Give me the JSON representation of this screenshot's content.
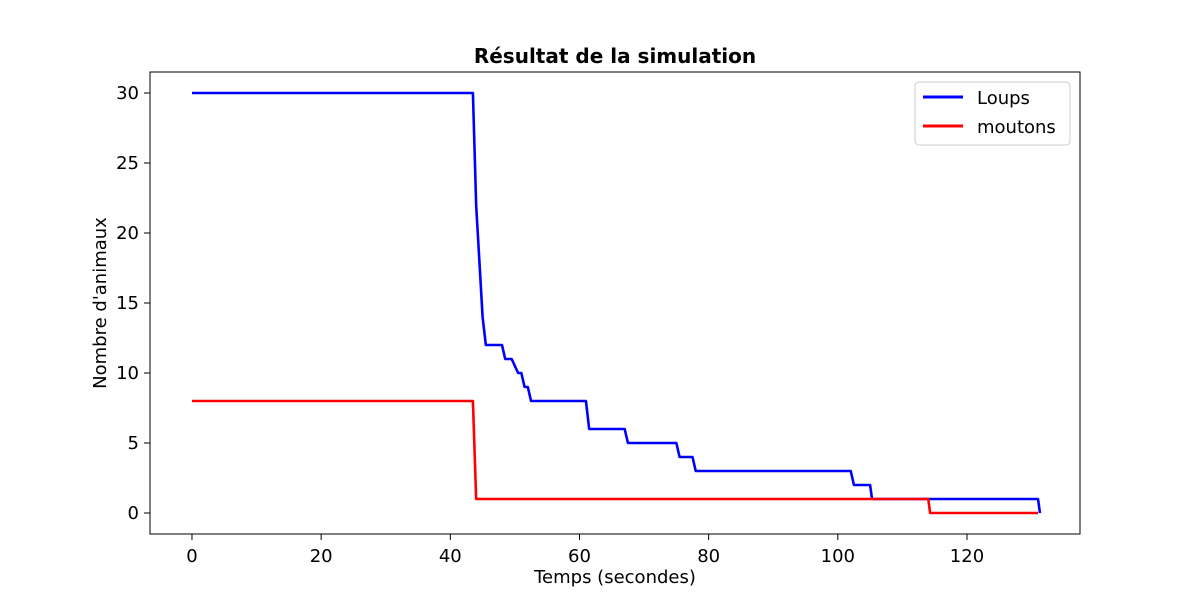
{
  "chart_data": {
    "type": "line",
    "title": "Résultat de la simulation",
    "xlabel": "Temps (secondes)",
    "ylabel": "Nombre d'animaux",
    "xlim": [
      -6.5,
      137.5
    ],
    "ylim": [
      -1.5,
      31.5
    ],
    "xticks": [
      0,
      20,
      40,
      60,
      80,
      100,
      120
    ],
    "yticks": [
      0,
      5,
      10,
      15,
      20,
      25,
      30
    ],
    "grid": false,
    "legend_position": "top-right",
    "series": [
      {
        "name": "Loups",
        "color": "#0000ff",
        "x": [
          0,
          43.5,
          44,
          44.5,
          45,
          45.5,
          46,
          47,
          48,
          48.5,
          49.5,
          50.5,
          51,
          51.5,
          52,
          52.5,
          53,
          54,
          55,
          57,
          59,
          60,
          61,
          61.5,
          62,
          64,
          66,
          67,
          67.5,
          69,
          72,
          75,
          75.5,
          77,
          77.5,
          78,
          90,
          102,
          102.5,
          104,
          105,
          105.3,
          110,
          120,
          130,
          131,
          131.3
        ],
        "y": [
          30,
          30,
          22,
          18,
          14,
          12,
          12,
          12,
          12,
          11,
          11,
          10,
          10,
          9,
          9,
          8,
          8,
          8,
          8,
          8,
          8,
          8,
          8,
          6,
          6,
          6,
          6,
          6,
          5,
          5,
          5,
          5,
          4,
          4,
          4,
          3,
          3,
          3,
          2,
          2,
          2,
          1,
          1,
          1,
          1,
          1,
          0
        ]
      },
      {
        "name": "moutons",
        "color": "#ff0000",
        "x": [
          0,
          43.5,
          44,
          60,
          80,
          100,
          114,
          114.3,
          131
        ],
        "y": [
          8,
          8,
          1,
          1,
          1,
          1,
          1,
          0,
          0
        ]
      }
    ]
  }
}
